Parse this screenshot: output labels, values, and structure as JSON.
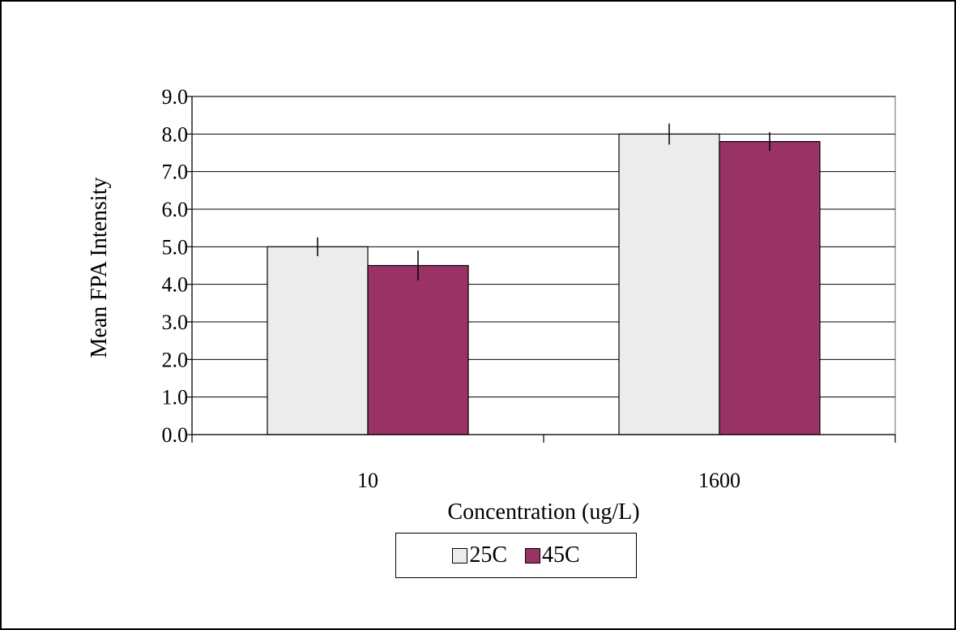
{
  "chart_data": {
    "type": "bar",
    "categories": [
      "10",
      "1600"
    ],
    "series": [
      {
        "name": "25C",
        "values": [
          5.0,
          8.0
        ],
        "error": [
          0.25,
          0.28
        ],
        "color": "#ececec"
      },
      {
        "name": "45C",
        "values": [
          4.5,
          7.8
        ],
        "error": [
          0.4,
          0.25
        ],
        "color": "#993366"
      }
    ],
    "title": "",
    "xlabel": "Concentration (ug/L)",
    "ylabel": "Mean FPA Intensity",
    "ylim": [
      0,
      9
    ],
    "yticks": [
      "0.0",
      "1.0",
      "2.0",
      "3.0",
      "4.0",
      "5.0",
      "6.0",
      "7.0",
      "8.0",
      "9.0"
    ],
    "grid": true,
    "legend_position": "bottom"
  }
}
